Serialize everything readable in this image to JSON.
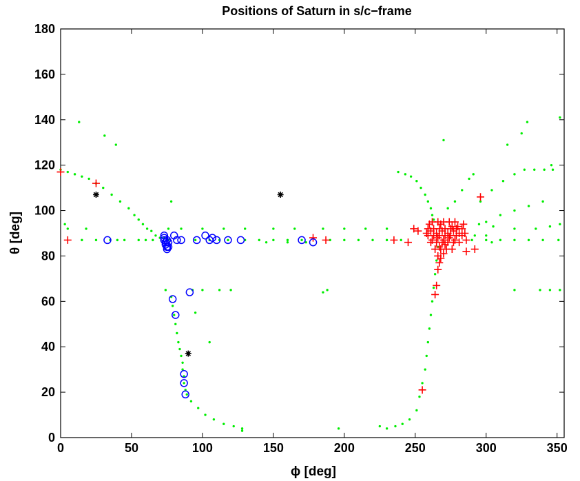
{
  "chart_data": {
    "type": "scatter",
    "title": "Positions of Saturn in s/c−frame",
    "xlabel": "ϕ [deg]",
    "ylabel": "θ [deg]",
    "xlim": [
      0,
      355
    ],
    "ylim": [
      0,
      180
    ],
    "x_ticks": [
      "0",
      "50",
      "100",
      "150",
      "200",
      "250",
      "300",
      "350"
    ],
    "y_ticks": [
      "0",
      "20",
      "40",
      "60",
      "80",
      "100",
      "120",
      "140",
      "160",
      "180"
    ],
    "grid": false,
    "legend": "none",
    "series": [
      {
        "marker": "dot",
        "color": "#00ee00",
        "points": [
          [
            0,
            118
          ],
          [
            5,
            117
          ],
          [
            10,
            116
          ],
          [
            15,
            115
          ],
          [
            20,
            114
          ],
          [
            25,
            112
          ],
          [
            30,
            110
          ],
          [
            36,
            107
          ],
          [
            42,
            104
          ],
          [
            48,
            101
          ],
          [
            52,
            98
          ],
          [
            55,
            96
          ],
          [
            58,
            94
          ],
          [
            61,
            92
          ],
          [
            64,
            91
          ],
          [
            67,
            89
          ],
          [
            70,
            88
          ],
          [
            73,
            88
          ],
          [
            76,
            87
          ],
          [
            13,
            139
          ],
          [
            31,
            133
          ],
          [
            39,
            129
          ],
          [
            78,
            104
          ],
          [
            76,
            92
          ],
          [
            74,
            65
          ],
          [
            78,
            62
          ],
          [
            79,
            58
          ],
          [
            80,
            54
          ],
          [
            81,
            50
          ],
          [
            82,
            46
          ],
          [
            83,
            42
          ],
          [
            84,
            39
          ],
          [
            85,
            36
          ],
          [
            86,
            33
          ],
          [
            86,
            30
          ],
          [
            87,
            27
          ],
          [
            87,
            24
          ],
          [
            88,
            21
          ],
          [
            89,
            19
          ],
          [
            92,
            16
          ],
          [
            97,
            13
          ],
          [
            102,
            10
          ],
          [
            108,
            8
          ],
          [
            115,
            6
          ],
          [
            122,
            5
          ],
          [
            128,
            4
          ],
          [
            128,
            3
          ],
          [
            95,
            55
          ],
          [
            105,
            42
          ],
          [
            93,
            65
          ],
          [
            100,
            65
          ],
          [
            112,
            65
          ],
          [
            120,
            65
          ],
          [
            85,
            92
          ],
          [
            100,
            92
          ],
          [
            115,
            92
          ],
          [
            130,
            92
          ],
          [
            150,
            92
          ],
          [
            165,
            92
          ],
          [
            185,
            92
          ],
          [
            200,
            92
          ],
          [
            215,
            92
          ],
          [
            230,
            92
          ],
          [
            3,
            94
          ],
          [
            5,
            92
          ],
          [
            18,
            92
          ],
          [
            55,
            87
          ],
          [
            60,
            87
          ],
          [
            65,
            87
          ],
          [
            95,
            87
          ],
          [
            105,
            87
          ],
          [
            112,
            87
          ],
          [
            118,
            87
          ],
          [
            130,
            87
          ],
          [
            140,
            87
          ],
          [
            150,
            87
          ],
          [
            160,
            87
          ],
          [
            170,
            87
          ],
          [
            190,
            87
          ],
          [
            200,
            87
          ],
          [
            210,
            87
          ],
          [
            220,
            87
          ],
          [
            230,
            87
          ],
          [
            240,
            87
          ],
          [
            15,
            87
          ],
          [
            25,
            87
          ],
          [
            35,
            87
          ],
          [
            40,
            87
          ],
          [
            45,
            87
          ],
          [
            173,
            86
          ],
          [
            160,
            86
          ],
          [
            145,
            86
          ],
          [
            196,
            4
          ],
          [
            225,
            5
          ],
          [
            230,
            4
          ],
          [
            236,
            5
          ],
          [
            241,
            6
          ],
          [
            246,
            8
          ],
          [
            251,
            12
          ],
          [
            253,
            18
          ],
          [
            255,
            24
          ],
          [
            257,
            30
          ],
          [
            258,
            36
          ],
          [
            259,
            42
          ],
          [
            260,
            48
          ],
          [
            261,
            54
          ],
          [
            262,
            60
          ],
          [
            263,
            66
          ],
          [
            264,
            72
          ],
          [
            265,
            78
          ],
          [
            266,
            84
          ],
          [
            238,
            117
          ],
          [
            243,
            116
          ],
          [
            247,
            115
          ],
          [
            251,
            113
          ],
          [
            254,
            110
          ],
          [
            257,
            107
          ],
          [
            259,
            104
          ],
          [
            261,
            101
          ],
          [
            262,
            98
          ],
          [
            263,
            96
          ],
          [
            185,
            64
          ],
          [
            188,
            65
          ],
          [
            270,
            131
          ],
          [
            273,
            101
          ],
          [
            278,
            104
          ],
          [
            283,
            109
          ],
          [
            288,
            114
          ],
          [
            291,
            116
          ],
          [
            296,
            104
          ],
          [
            304,
            109
          ],
          [
            312,
            113
          ],
          [
            320,
            116
          ],
          [
            327,
            118
          ],
          [
            334,
            118
          ],
          [
            341,
            118
          ],
          [
            347,
            118
          ],
          [
            300,
            95
          ],
          [
            310,
            98
          ],
          [
            320,
            100
          ],
          [
            330,
            102
          ],
          [
            340,
            104
          ],
          [
            346,
            120
          ],
          [
            315,
            129
          ],
          [
            325,
            134
          ],
          [
            329,
            139
          ],
          [
            352,
            141
          ],
          [
            295,
            94
          ],
          [
            305,
            93
          ],
          [
            320,
            92
          ],
          [
            335,
            92
          ],
          [
            345,
            93
          ],
          [
            352,
            94
          ],
          [
            290,
            87
          ],
          [
            300,
            87
          ],
          [
            310,
            87
          ],
          [
            320,
            87
          ],
          [
            330,
            87
          ],
          [
            340,
            87
          ],
          [
            351,
            87
          ],
          [
            320,
            65
          ],
          [
            338,
            65
          ],
          [
            345,
            65
          ],
          [
            352,
            65
          ],
          [
            292,
            89
          ],
          [
            300,
            89
          ],
          [
            304,
            86
          ]
        ]
      },
      {
        "marker": "plus",
        "color": "#ff0000",
        "points": [
          [
            0,
            117
          ],
          [
            5,
            87
          ],
          [
            25,
            112
          ],
          [
            178,
            88
          ],
          [
            187,
            87
          ],
          [
            235,
            87
          ],
          [
            245,
            86
          ],
          [
            249,
            92
          ],
          [
            252,
            91
          ],
          [
            255,
            21
          ],
          [
            264,
            63
          ],
          [
            265,
            67
          ],
          [
            266,
            74
          ],
          [
            267,
            77
          ],
          [
            268,
            79
          ],
          [
            284,
            94
          ],
          [
            286,
            87
          ],
          [
            286,
            82
          ],
          [
            292,
            83
          ],
          [
            296,
            106
          ],
          [
            262,
            95
          ],
          [
            266,
            95
          ],
          [
            270,
            95
          ],
          [
            274,
            95
          ],
          [
            278,
            95
          ],
          [
            259,
            92
          ],
          [
            263,
            92
          ],
          [
            267,
            92
          ],
          [
            271,
            92
          ],
          [
            275,
            92
          ],
          [
            279,
            92
          ],
          [
            283,
            92
          ],
          [
            259,
            89
          ],
          [
            263,
            89
          ],
          [
            267,
            89
          ],
          [
            271,
            89
          ],
          [
            275,
            89
          ],
          [
            279,
            89
          ],
          [
            283,
            89
          ],
          [
            261,
            86
          ],
          [
            265,
            86
          ],
          [
            269,
            86
          ],
          [
            273,
            86
          ],
          [
            277,
            86
          ],
          [
            281,
            86
          ],
          [
            264,
            83
          ],
          [
            268,
            83
          ],
          [
            272,
            83
          ],
          [
            276,
            83
          ],
          [
            261,
            91
          ],
          [
            265,
            90
          ],
          [
            269,
            91
          ],
          [
            273,
            90
          ],
          [
            277,
            91
          ],
          [
            281,
            90
          ],
          [
            262,
            87
          ],
          [
            266,
            88
          ],
          [
            270,
            87
          ],
          [
            274,
            88
          ],
          [
            278,
            87
          ],
          [
            266,
            80
          ],
          [
            270,
            81
          ],
          [
            260,
            94
          ],
          [
            276,
            93
          ],
          [
            268,
            94
          ],
          [
            280,
            93
          ],
          [
            258,
            90
          ],
          [
            285,
            90
          ],
          [
            267,
            84
          ],
          [
            271,
            85
          ]
        ]
      },
      {
        "marker": "circle",
        "color": "#0000ff",
        "points": [
          [
            33,
            87
          ],
          [
            73,
            89
          ],
          [
            73,
            88
          ],
          [
            73,
            87
          ],
          [
            74,
            86
          ],
          [
            74,
            85
          ],
          [
            75,
            84
          ],
          [
            75,
            83
          ],
          [
            75,
            87
          ],
          [
            76,
            86
          ],
          [
            76,
            84
          ],
          [
            80,
            89
          ],
          [
            82,
            87
          ],
          [
            85,
            87
          ],
          [
            96,
            87
          ],
          [
            102,
            89
          ],
          [
            105,
            87
          ],
          [
            107,
            88
          ],
          [
            110,
            87
          ],
          [
            118,
            87
          ],
          [
            127,
            87
          ],
          [
            170,
            87
          ],
          [
            178,
            86
          ],
          [
            79,
            61
          ],
          [
            81,
            54
          ],
          [
            91,
            64
          ],
          [
            87,
            28
          ],
          [
            87,
            24
          ],
          [
            88,
            19
          ]
        ]
      },
      {
        "marker": "asterisk",
        "color": "#000000",
        "points": [
          [
            25,
            107
          ],
          [
            155,
            107
          ],
          [
            90,
            37
          ]
        ]
      }
    ]
  }
}
